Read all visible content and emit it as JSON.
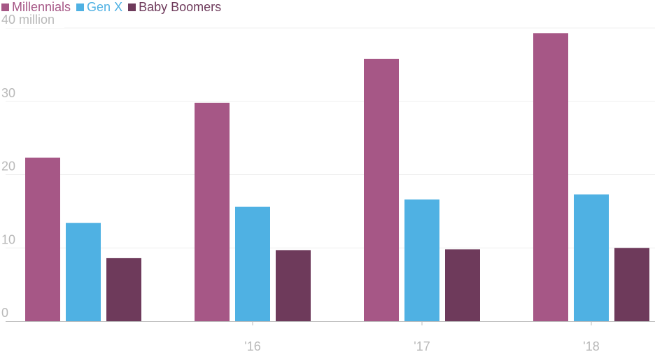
{
  "chart_data": {
    "type": "bar",
    "categories": [
      "",
      "'16",
      "'17",
      "'18"
    ],
    "series": [
      {
        "name": "Millennials",
        "color": "#a65786",
        "values": [
          22.3,
          29.8,
          35.8,
          39.3
        ]
      },
      {
        "name": "Gen X",
        "color": "#4fb1e3",
        "values": [
          13.4,
          15.6,
          16.6,
          17.3
        ]
      },
      {
        "name": "Baby Boomers",
        "color": "#6e3a5b",
        "values": [
          8.6,
          9.7,
          9.8,
          10.0
        ]
      }
    ],
    "y_ticks": [
      {
        "value": 0,
        "label": "0"
      },
      {
        "value": 10,
        "label": "10"
      },
      {
        "value": 20,
        "label": "20"
      },
      {
        "value": 30,
        "label": "30"
      },
      {
        "value": 40,
        "label": "40 million"
      }
    ],
    "ylim": [
      0,
      40
    ],
    "grid": true,
    "legend_position": "top-left",
    "title": "",
    "xlabel": "",
    "ylabel": ""
  }
}
